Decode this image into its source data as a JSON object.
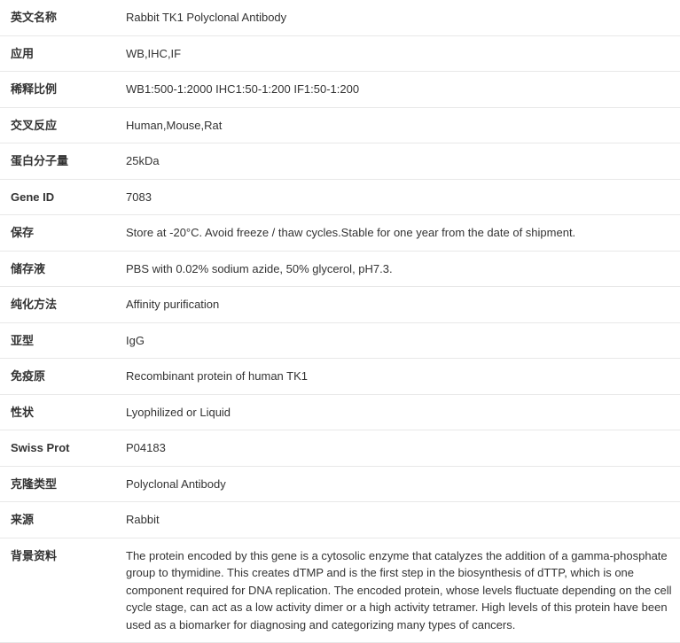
{
  "rows": [
    {
      "label": "英文名称",
      "value": "Rabbit TK1 Polyclonal Antibody"
    },
    {
      "label": "应用",
      "value": "WB,IHC,IF"
    },
    {
      "label": "稀释比例",
      "value": "WB1:500-1:2000 IHC1:50-1:200 IF1:50-1:200"
    },
    {
      "label": "交叉反应",
      "value": "Human,Mouse,Rat"
    },
    {
      "label": "蛋白分子量",
      "value": "25kDa"
    },
    {
      "label": "Gene ID",
      "value": "7083"
    },
    {
      "label": "保存",
      "value": "Store at -20°C. Avoid freeze / thaw cycles.Stable for one year from the date of shipment."
    },
    {
      "label": "储存液",
      "value": "PBS with 0.02% sodium azide, 50% glycerol, pH7.3."
    },
    {
      "label": "纯化方法",
      "value": "Affinity purification"
    },
    {
      "label": "亚型",
      "value": "IgG"
    },
    {
      "label": "免疫原",
      "value": "Recombinant protein of human TK1"
    },
    {
      "label": "性状",
      "value": "Lyophilized or Liquid"
    },
    {
      "label": "Swiss Prot",
      "value": "P04183"
    },
    {
      "label": "克隆类型",
      "value": "Polyclonal Antibody"
    },
    {
      "label": "来源",
      "value": "Rabbit"
    },
    {
      "label": "背景资料",
      "value": "The protein encoded by this gene is a cytosolic enzyme that catalyzes the addition of a gamma-phosphate group to thymidine. This creates dTMP and is the first step in the biosynthesis of dTTP, which is one component required for DNA replication. The encoded protein, whose levels fluctuate depending on the cell cycle stage, can act as a low activity dimer or a high activity tetramer. High levels of this protein have been used as a biomarker for diagnosing and categorizing many types of cancers."
    }
  ]
}
